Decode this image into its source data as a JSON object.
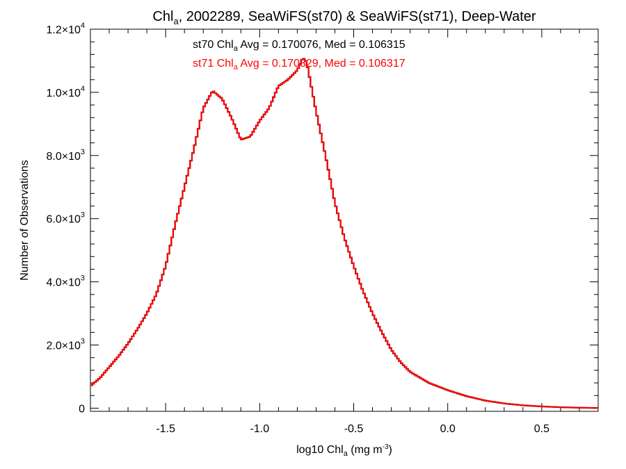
{
  "chart_data": {
    "type": "histogram",
    "title": {
      "pre": "Chl",
      "sub": "a",
      "post": ", 2002289, SeaWiFS(st70) & SeaWiFS(st71), Deep-Water"
    },
    "xlabel": {
      "pre": "log10 Chl",
      "sub": "a",
      "mid": " (mg m",
      "sup": "-3",
      "post": ")"
    },
    "ylabel": "Number of Observations",
    "xlim": [
      -1.9,
      0.8
    ],
    "ylim": [
      -100,
      12000
    ],
    "x_ticks": [
      {
        "value": -1.5,
        "label": "-1.5"
      },
      {
        "value": -1.0,
        "label": "-1.0"
      },
      {
        "value": -0.5,
        "label": "-0.5"
      },
      {
        "value": 0.0,
        "label": "0.0"
      },
      {
        "value": 0.5,
        "label": "0.5"
      }
    ],
    "y_ticks": [
      {
        "value": 0,
        "mant": "0",
        "exp": ""
      },
      {
        "value": 2000,
        "mant": "2.0×10",
        "exp": "3"
      },
      {
        "value": 4000,
        "mant": "4.0×10",
        "exp": "3"
      },
      {
        "value": 6000,
        "mant": "6.0×10",
        "exp": "3"
      },
      {
        "value": 8000,
        "mant": "8.0×10",
        "exp": "3"
      },
      {
        "value": 10000,
        "mant": "1.0×10",
        "exp": "4"
      },
      {
        "value": 12000,
        "mant": "1.2×10",
        "exp": "4"
      }
    ],
    "annotations": [
      {
        "series": "st70",
        "pre": "st70 Chl",
        "sub": "a",
        "post": " Avg = 0.170076, Med = 0.106315",
        "color": "#000000"
      },
      {
        "series": "st71",
        "pre": "st71 Chl",
        "sub": "a",
        "post": " Avg = 0.170329, Med = 0.106317",
        "color": "#ff0000"
      }
    ],
    "series": [
      {
        "name": "st70",
        "color": "#000000",
        "curve": [
          [
            -1.9,
            700
          ],
          [
            -1.85,
            950
          ],
          [
            -1.8,
            1300
          ],
          [
            -1.75,
            1650
          ],
          [
            -1.7,
            2050
          ],
          [
            -1.65,
            2500
          ],
          [
            -1.6,
            3000
          ],
          [
            -1.55,
            3600
          ],
          [
            -1.5,
            4500
          ],
          [
            -1.45,
            5800
          ],
          [
            -1.4,
            7000
          ],
          [
            -1.35,
            8200
          ],
          [
            -1.3,
            9500
          ],
          [
            -1.25,
            10050
          ],
          [
            -1.2,
            9800
          ],
          [
            -1.15,
            9200
          ],
          [
            -1.1,
            8500
          ],
          [
            -1.05,
            8600
          ],
          [
            -1.0,
            9100
          ],
          [
            -0.95,
            9500
          ],
          [
            -0.9,
            10200
          ],
          [
            -0.85,
            10400
          ],
          [
            -0.8,
            10700
          ],
          [
            -0.77,
            11100
          ],
          [
            -0.75,
            10950
          ],
          [
            -0.7,
            9400
          ],
          [
            -0.65,
            8000
          ],
          [
            -0.6,
            6500
          ],
          [
            -0.55,
            5400
          ],
          [
            -0.5,
            4500
          ],
          [
            -0.45,
            3700
          ],
          [
            -0.4,
            3000
          ],
          [
            -0.35,
            2400
          ],
          [
            -0.3,
            1850
          ],
          [
            -0.25,
            1450
          ],
          [
            -0.2,
            1150
          ],
          [
            -0.1,
            800
          ],
          [
            0.0,
            570
          ],
          [
            0.1,
            380
          ],
          [
            0.2,
            240
          ],
          [
            0.3,
            150
          ],
          [
            0.4,
            90
          ],
          [
            0.5,
            55
          ],
          [
            0.6,
            30
          ],
          [
            0.7,
            15
          ],
          [
            0.8,
            5
          ]
        ]
      },
      {
        "name": "st71",
        "color": "#ff0000",
        "curve": [
          [
            -1.9,
            700
          ],
          [
            -1.85,
            950
          ],
          [
            -1.8,
            1300
          ],
          [
            -1.75,
            1650
          ],
          [
            -1.7,
            2050
          ],
          [
            -1.65,
            2500
          ],
          [
            -1.6,
            3000
          ],
          [
            -1.55,
            3600
          ],
          [
            -1.5,
            4500
          ],
          [
            -1.45,
            5800
          ],
          [
            -1.4,
            7000
          ],
          [
            -1.35,
            8200
          ],
          [
            -1.3,
            9500
          ],
          [
            -1.25,
            10050
          ],
          [
            -1.2,
            9800
          ],
          [
            -1.15,
            9200
          ],
          [
            -1.1,
            8500
          ],
          [
            -1.05,
            8600
          ],
          [
            -1.0,
            9100
          ],
          [
            -0.95,
            9500
          ],
          [
            -0.9,
            10200
          ],
          [
            -0.85,
            10400
          ],
          [
            -0.8,
            10700
          ],
          [
            -0.77,
            11100
          ],
          [
            -0.75,
            10950
          ],
          [
            -0.7,
            9400
          ],
          [
            -0.65,
            8000
          ],
          [
            -0.6,
            6500
          ],
          [
            -0.55,
            5400
          ],
          [
            -0.5,
            4500
          ],
          [
            -0.45,
            3700
          ],
          [
            -0.4,
            3000
          ],
          [
            -0.35,
            2400
          ],
          [
            -0.3,
            1850
          ],
          [
            -0.25,
            1450
          ],
          [
            -0.2,
            1150
          ],
          [
            -0.1,
            800
          ],
          [
            0.0,
            570
          ],
          [
            0.1,
            380
          ],
          [
            0.2,
            240
          ],
          [
            0.3,
            150
          ],
          [
            0.4,
            90
          ],
          [
            0.5,
            55
          ],
          [
            0.6,
            30
          ],
          [
            0.7,
            15
          ],
          [
            0.8,
            5
          ]
        ]
      }
    ],
    "bin_width": 0.01,
    "grid": false,
    "legend": "none"
  }
}
